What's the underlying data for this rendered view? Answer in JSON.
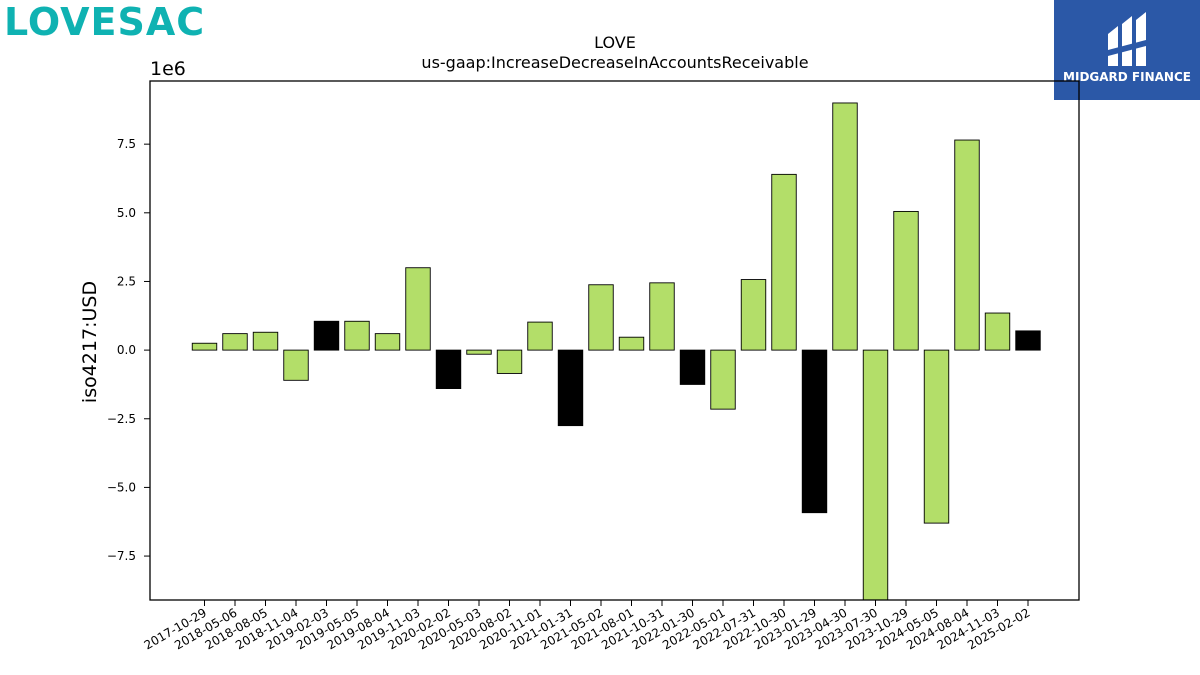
{
  "logos": {
    "left_text": "LOVESAC",
    "right_text": "MIDGARD FINANCE"
  },
  "colors": {
    "bar_default": "#b3de69",
    "bar_highlight": "#000000",
    "logo_left": "#0fb2b2",
    "logo_right_bg": "#2b58a7"
  },
  "chart_data": {
    "type": "bar",
    "title": "LOVE",
    "subtitle": "us-gaap:IncreaseDecreaseInAccountsReceivable",
    "xlabel": "",
    "ylabel": "iso4217:USD",
    "y_multiplier_label": "1e6",
    "ylim": [
      -9.1,
      9.8
    ],
    "yticks": [
      -7.5,
      -5.0,
      -2.5,
      0.0,
      2.5,
      5.0,
      7.5
    ],
    "ytick_labels": [
      "−7.5",
      "−5.0",
      "−2.5",
      "0.0",
      "2.5",
      "5.0",
      "7.5"
    ],
    "grid": false,
    "categories": [
      "2017-10-29",
      "2018-05-06",
      "2018-08-05",
      "2018-11-04",
      "2019-02-03",
      "2019-05-05",
      "2019-08-04",
      "2019-11-03",
      "2020-02-02",
      "2020-05-03",
      "2020-08-02",
      "2020-11-01",
      "2021-01-31",
      "2021-05-02",
      "2021-08-01",
      "2021-10-31",
      "2022-01-30",
      "2022-05-01",
      "2022-07-31",
      "2022-10-30",
      "2023-01-29",
      "2023-04-30",
      "2023-07-30",
      "2023-10-29",
      "2024-05-05",
      "2024-08-04",
      "2024-11-03",
      "2025-02-02"
    ],
    "values": [
      0.25,
      0.6,
      0.65,
      -1.1,
      1.05,
      1.05,
      0.6,
      3.0,
      -1.4,
      -0.15,
      -0.85,
      1.02,
      -2.75,
      2.38,
      0.47,
      2.45,
      -1.25,
      -2.15,
      2.57,
      6.4,
      -5.92,
      9.0,
      -9.1,
      5.05,
      -6.3,
      7.65,
      1.35,
      0.7
    ],
    "highlight": [
      false,
      false,
      false,
      false,
      true,
      false,
      false,
      false,
      true,
      false,
      false,
      false,
      true,
      false,
      false,
      false,
      true,
      false,
      false,
      false,
      true,
      false,
      false,
      false,
      false,
      false,
      false,
      true
    ]
  }
}
